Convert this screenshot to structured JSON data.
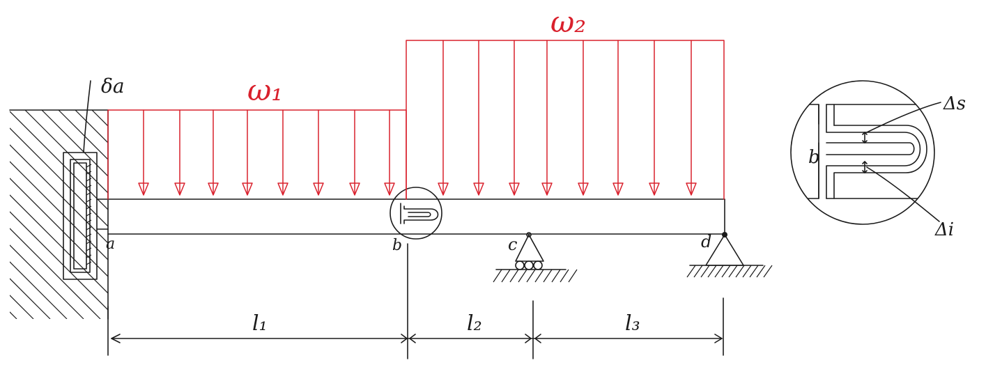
{
  "labels": {
    "w1": "ω₁",
    "w2": "ω₂",
    "delta_a": "δa",
    "a": "a",
    "b": "b",
    "c": "c",
    "d": "d",
    "l1": "l₁",
    "l2": "l₂",
    "l3": "l₃",
    "detail_b": "b",
    "delta_s": "Δs",
    "delta_i": "Δi"
  },
  "colors": {
    "load": "#d9202c",
    "ink": "#1a1a1a"
  }
}
